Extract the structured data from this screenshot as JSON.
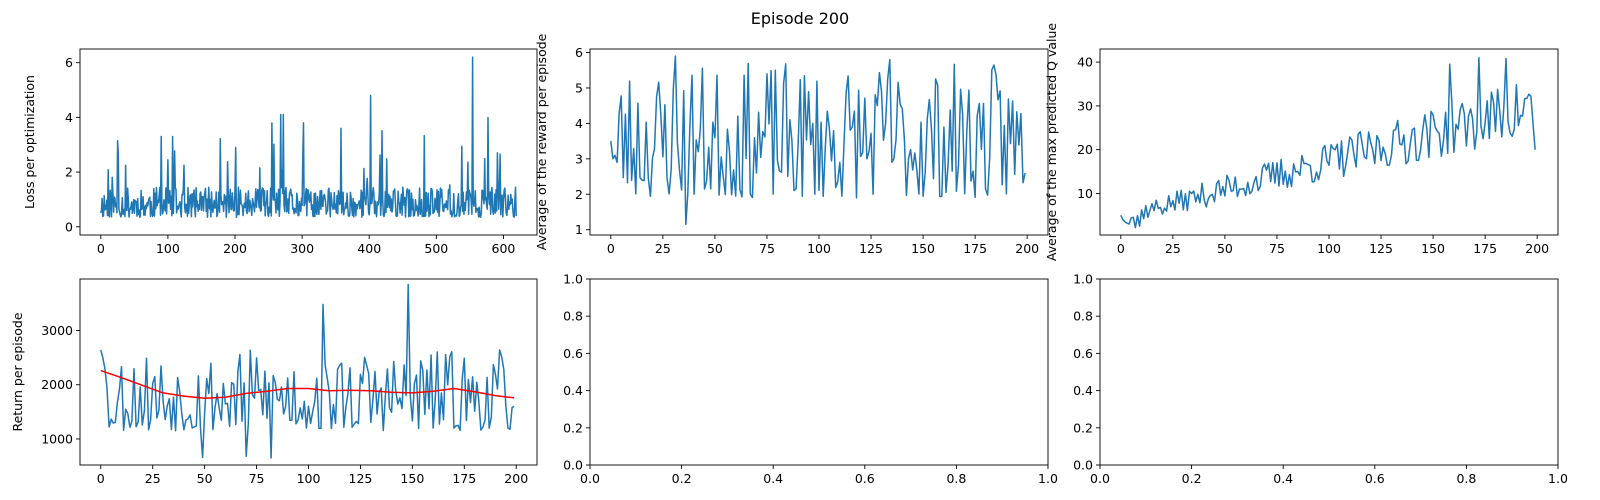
{
  "figure": {
    "suptitle": "Episode 200"
  },
  "chart_data": [
    {
      "type": "line",
      "ylabel": "Loss per optimization",
      "xlim": [
        -31,
        650
      ],
      "ylim": [
        -0.3,
        6.5
      ],
      "xticks": [
        0,
        100,
        200,
        300,
        400,
        500,
        600
      ],
      "yticks": [
        0,
        2,
        4,
        6
      ],
      "series": [
        {
          "color": "#1f77b4",
          "kind": "noise",
          "n": 620,
          "seed": 11,
          "base": 0.35,
          "spread": 1.1,
          "spikeProb": 0.06,
          "spikeMax": 3.2,
          "peaks": [
            [
              90,
              3.3
            ],
            [
              107,
              3.3
            ],
            [
              255,
              3.8
            ],
            [
              268,
              4.1
            ],
            [
              272,
              4.1
            ],
            [
              358,
              3.6
            ],
            [
              402,
              4.8
            ],
            [
              554,
              6.2
            ],
            [
              591,
              2.7
            ]
          ]
        }
      ]
    },
    {
      "type": "line",
      "ylabel": "Average of the reward per episode",
      "xlim": [
        -10,
        210
      ],
      "ylim": [
        0.85,
        6.1
      ],
      "xticks": [
        0,
        25,
        50,
        75,
        100,
        125,
        150,
        175,
        200
      ],
      "yticks": [
        1,
        2,
        3,
        4,
        5,
        6
      ],
      "series": [
        {
          "color": "#1f77b4",
          "kind": "noise",
          "n": 200,
          "seed": 23,
          "base": 1.9,
          "spread": 3.8,
          "spikeProb": 0,
          "spikeMax": 0,
          "peaks": [
            [
              0,
              3.5
            ],
            [
              1,
              3.0
            ],
            [
              2,
              3.1
            ],
            [
              3,
              2.9
            ],
            [
              36,
              1.15
            ],
            [
              31,
              5.9
            ],
            [
              134,
              5.8
            ],
            [
              199,
              2.6
            ]
          ]
        }
      ]
    },
    {
      "type": "line",
      "ylabel": "Average of the max predicted Q value",
      "xlim": [
        -10,
        210
      ],
      "ylim": [
        0.5,
        43
      ],
      "xticks": [
        0,
        25,
        50,
        75,
        100,
        125,
        150,
        175,
        200
      ],
      "yticks": [
        10,
        20,
        30,
        40
      ],
      "series": [
        {
          "color": "#1f77b4",
          "kind": "trend",
          "n": 200,
          "seed": 37,
          "startLevel": 4,
          "endLevel": 24,
          "spread": 12,
          "peaks": [
            [
              0,
              5
            ],
            [
              1,
              4
            ],
            [
              2,
              3.5
            ],
            [
              3,
              3.2
            ],
            [
              4,
              3
            ],
            [
              7,
              2.2
            ],
            [
              9,
              2.5
            ],
            [
              158,
              39.5
            ],
            [
              172,
              41
            ],
            [
              185,
              40.8
            ],
            [
              199,
              20
            ]
          ]
        }
      ]
    },
    {
      "type": "line",
      "ylabel": "Return per episode",
      "xlim": [
        -10,
        210
      ],
      "ylim": [
        520,
        3950
      ],
      "xticks": [
        0,
        25,
        50,
        75,
        100,
        125,
        150,
        175,
        200
      ],
      "yticks": [
        1000,
        2000,
        3000
      ],
      "series": [
        {
          "color": "#1f77b4",
          "kind": "noise",
          "n": 200,
          "seed": 53,
          "base": 1150,
          "spread": 1500,
          "spikeProb": 0,
          "spikeMax": 0,
          "peaks": [
            [
              0,
              2640
            ],
            [
              1,
              2500
            ],
            [
              2,
              2300
            ],
            [
              4,
              1220
            ],
            [
              49,
              660
            ],
            [
              70,
              680
            ],
            [
              82,
              650
            ],
            [
              107,
              3480
            ],
            [
              148,
              3850
            ],
            [
              199,
              1600
            ]
          ]
        },
        {
          "color": "#ff0000",
          "kind": "points",
          "x": [
            0,
            10,
            20,
            30,
            40,
            50,
            60,
            70,
            80,
            90,
            100,
            110,
            120,
            130,
            140,
            150,
            160,
            170,
            180,
            190,
            199
          ],
          "y": [
            2260,
            2130,
            1990,
            1850,
            1790,
            1750,
            1770,
            1840,
            1880,
            1930,
            1930,
            1890,
            1900,
            1890,
            1860,
            1850,
            1880,
            1930,
            1870,
            1800,
            1760
          ]
        }
      ]
    },
    {
      "type": "line",
      "xlim": [
        0,
        1
      ],
      "ylim": [
        0,
        1
      ],
      "xticks": [
        0.0,
        0.2,
        0.4,
        0.6,
        0.8,
        1.0
      ],
      "yticks": [
        0.0,
        0.2,
        0.4,
        0.6,
        0.8,
        1.0
      ],
      "tickFormat": "fixed1",
      "series": []
    },
    {
      "type": "line",
      "xlim": [
        0,
        1
      ],
      "ylim": [
        0,
        1
      ],
      "xticks": [
        0.0,
        0.2,
        0.4,
        0.6,
        0.8,
        1.0
      ],
      "yticks": [
        0.0,
        0.2,
        0.4,
        0.6,
        0.8,
        1.0
      ],
      "tickFormat": "fixed1",
      "series": []
    }
  ]
}
